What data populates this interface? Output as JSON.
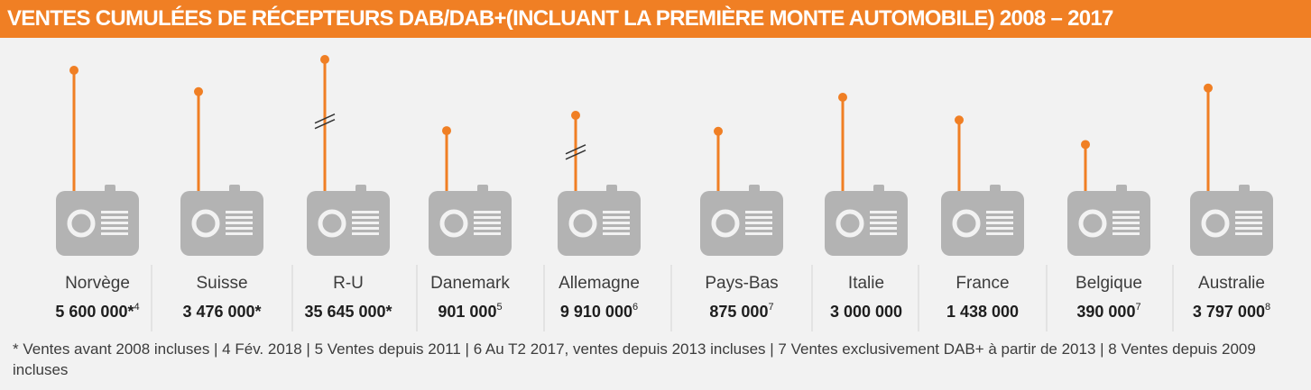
{
  "header": {
    "title": "VENTES CUMULÉES DE RÉCEPTEURS DAB/DAB+(INCLUANT LA PREMIÈRE MONTE AUTOMOBILE) 2008 – 2017"
  },
  "colors": {
    "accent": "#f07f24",
    "radio": "#b3b3b3",
    "background": "#f2f2f2"
  },
  "icon_name": "radio-icon",
  "chart_data": {
    "type": "pictogram",
    "title": "VENTES CUMULÉES DE RÉCEPTEURS DAB/DAB+(INCLUANT LA PREMIÈRE MONTE AUTOMOBILE) 2008 – 2017",
    "categories": [
      "Norvège",
      "Suisse",
      "R-U",
      "Danemark",
      "Allemagne",
      "Pays-Bas",
      "Italie",
      "France",
      "Belgique",
      "Australie"
    ],
    "values": [
      5600000,
      3476000,
      35645000,
      901000,
      9910000,
      875000,
      3000000,
      1438000,
      390000,
      3797000
    ],
    "value_labels": [
      "5 600 000",
      "3 476 000",
      "35 645 000",
      "901 000",
      "9 910 000",
      "875 000",
      "3 000 000",
      "1 438 000",
      "390 000",
      "3 797 000"
    ],
    "value_marks": [
      "*",
      "*",
      "*",
      "",
      "",
      "",
      "",
      "",
      "",
      ""
    ],
    "footnote_refs": [
      "4",
      "",
      "",
      "5",
      "6",
      "7",
      "",
      "",
      "7",
      "8"
    ],
    "broken_scale": [
      false,
      false,
      true,
      false,
      true,
      false,
      false,
      false,
      false,
      false
    ]
  },
  "footnotes": "* Ventes avant 2008 incluses  |  4 Fév. 2018  |  5 Ventes depuis 2011  |  6 Au T2 2017, ventes depuis 2013 incluses |  7 Ventes exclusivement  DAB+ à partir de 2013  |  8 Ventes depuis 2009 incluses"
}
